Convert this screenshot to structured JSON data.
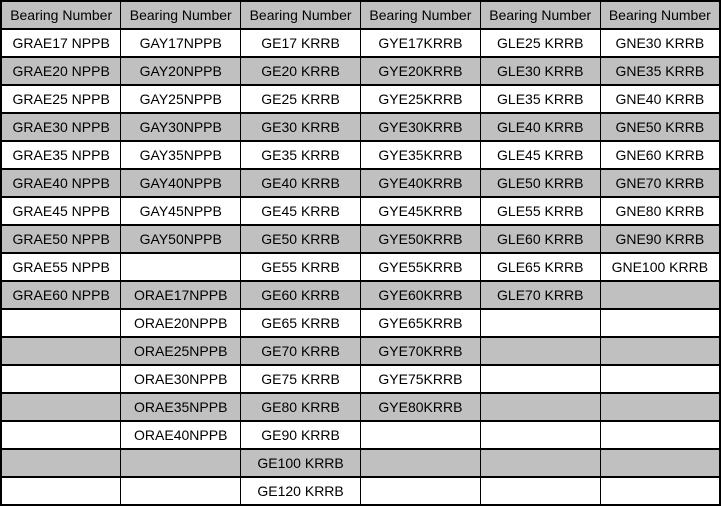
{
  "colors": {
    "header_bg": "#c0c0c0",
    "stripe_bg": "#c0c0c0",
    "row_bg": "#ffffff",
    "border": "#000000",
    "text": "#000000"
  },
  "table": {
    "headers": [
      "Bearing Number",
      "Bearing Number",
      "Bearing Number",
      "Bearing Number",
      "Bearing Number",
      "Bearing Number"
    ],
    "rows": [
      [
        "GRAE17 NPPB",
        "GAY17NPPB",
        "GE17 KRRB",
        "GYE17KRRB",
        "GLE25 KRRB",
        "GNE30 KRRB"
      ],
      [
        "GRAE20 NPPB",
        "GAY20NPPB",
        "GE20 KRRB",
        "GYE20KRRB",
        "GLE30 KRRB",
        "GNE35 KRRB"
      ],
      [
        "GRAE25 NPPB",
        "GAY25NPPB",
        "GE25 KRRB",
        "GYE25KRRB",
        "GLE35 KRRB",
        "GNE40 KRRB"
      ],
      [
        "GRAE30 NPPB",
        "GAY30NPPB",
        "GE30 KRRB",
        "GYE30KRRB",
        "GLE40 KRRB",
        "GNE50 KRRB"
      ],
      [
        "GRAE35 NPPB",
        "GAY35NPPB",
        "GE35 KRRB",
        "GYE35KRRB",
        "GLE45 KRRB",
        "GNE60 KRRB"
      ],
      [
        "GRAE40 NPPB",
        "GAY40NPPB",
        "GE40 KRRB",
        "GYE40KRRB",
        "GLE50 KRRB",
        "GNE70 KRRB"
      ],
      [
        "GRAE45 NPPB",
        "GAY45NPPB",
        "GE45 KRRB",
        "GYE45KRRB",
        "GLE55 KRRB",
        "GNE80 KRRB"
      ],
      [
        "GRAE50 NPPB",
        "GAY50NPPB",
        "GE50 KRRB",
        "GYE50KRRB",
        "GLE60 KRRB",
        "GNE90 KRRB"
      ],
      [
        "GRAE55 NPPB",
        "",
        "GE55 KRRB",
        "GYE55KRRB",
        "GLE65 KRRB",
        "GNE100 KRRB"
      ],
      [
        "GRAE60 NPPB",
        "ORAE17NPPB",
        "GE60 KRRB",
        "GYE60KRRB",
        "GLE70 KRRB",
        ""
      ],
      [
        "",
        "ORAE20NPPB",
        "GE65 KRRB",
        "GYE65KRRB",
        "",
        ""
      ],
      [
        "",
        "ORAE25NPPB",
        "GE70 KRRB",
        "GYE70KRRB",
        "",
        ""
      ],
      [
        "",
        "ORAE30NPPB",
        "GE75 KRRB",
        "GYE75KRRB",
        "",
        ""
      ],
      [
        "",
        "ORAE35NPPB",
        "GE80 KRRB",
        "GYE80KRRB",
        "",
        ""
      ],
      [
        "",
        "ORAE40NPPB",
        "GE90 KRRB",
        "",
        "",
        ""
      ],
      [
        "",
        "",
        "GE100 KRRB",
        "",
        "",
        ""
      ],
      [
        "",
        "",
        "GE120 KRRB",
        "",
        "",
        ""
      ]
    ]
  },
  "chart_data": {
    "type": "table",
    "title": "",
    "columns": [
      "Bearing Number",
      "Bearing Number",
      "Bearing Number",
      "Bearing Number",
      "Bearing Number",
      "Bearing Number"
    ],
    "rows": [
      [
        "GRAE17 NPPB",
        "GAY17NPPB",
        "GE17 KRRB",
        "GYE17KRRB",
        "GLE25 KRRB",
        "GNE30 KRRB"
      ],
      [
        "GRAE20 NPPB",
        "GAY20NPPB",
        "GE20 KRRB",
        "GYE20KRRB",
        "GLE30 KRRB",
        "GNE35 KRRB"
      ],
      [
        "GRAE25 NPPB",
        "GAY25NPPB",
        "GE25 KRRB",
        "GYE25KRRB",
        "GLE35 KRRB",
        "GNE40 KRRB"
      ],
      [
        "GRAE30 NPPB",
        "GAY30NPPB",
        "GE30 KRRB",
        "GYE30KRRB",
        "GLE40 KRRB",
        "GNE50 KRRB"
      ],
      [
        "GRAE35 NPPB",
        "GAY35NPPB",
        "GE35 KRRB",
        "GYE35KRRB",
        "GLE45 KRRB",
        "GNE60 KRRB"
      ],
      [
        "GRAE40 NPPB",
        "GAY40NPPB",
        "GE40 KRRB",
        "GYE40KRRB",
        "GLE50 KRRB",
        "GNE70 KRRB"
      ],
      [
        "GRAE45 NPPB",
        "GAY45NPPB",
        "GE45 KRRB",
        "GYE45KRRB",
        "GLE55 KRRB",
        "GNE80 KRRB"
      ],
      [
        "GRAE50 NPPB",
        "GAY50NPPB",
        "GE50 KRRB",
        "GYE50KRRB",
        "GLE60 KRRB",
        "GNE90 KRRB"
      ],
      [
        "GRAE55 NPPB",
        "",
        "GE55 KRRB",
        "GYE55KRRB",
        "GLE65 KRRB",
        "GNE100 KRRB"
      ],
      [
        "GRAE60 NPPB",
        "ORAE17NPPB",
        "GE60 KRRB",
        "GYE60KRRB",
        "GLE70 KRRB",
        ""
      ],
      [
        "",
        "ORAE20NPPB",
        "GE65 KRRB",
        "GYE65KRRB",
        "",
        ""
      ],
      [
        "",
        "ORAE25NPPB",
        "GE70 KRRB",
        "GYE70KRRB",
        "",
        ""
      ],
      [
        "",
        "ORAE30NPPB",
        "GE75 KRRB",
        "GYE75KRRB",
        "",
        ""
      ],
      [
        "",
        "ORAE35NPPB",
        "GE80 KRRB",
        "GYE80KRRB",
        "",
        ""
      ],
      [
        "",
        "ORAE40NPPB",
        "GE90 KRRB",
        "",
        "",
        ""
      ],
      [
        "",
        "",
        "GE100 KRRB",
        "",
        "",
        ""
      ],
      [
        "",
        "",
        "GE120 KRRB",
        "",
        "",
        ""
      ]
    ],
    "layout": {
      "grid": true,
      "striped_rows": true,
      "header_row": true
    }
  }
}
